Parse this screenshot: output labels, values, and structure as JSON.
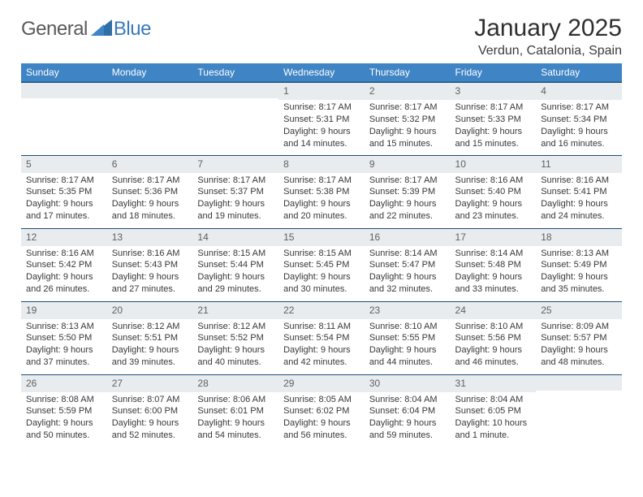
{
  "logo": {
    "general": "General",
    "blue": "Blue"
  },
  "title": "January 2025",
  "location": "Verdun, Catalonia, Spain",
  "colors": {
    "header_bg": "#3f84c4",
    "header_text": "#ffffff",
    "dayhead_bg": "#e8ecef",
    "dayhead_text": "#606060",
    "dayhead_border": "#1f4f7a",
    "body_text": "#383838",
    "logo_general": "#5a5a5a",
    "logo_blue": "#3a7ab8"
  },
  "day_headers": [
    "Sunday",
    "Monday",
    "Tuesday",
    "Wednesday",
    "Thursday",
    "Friday",
    "Saturday"
  ],
  "weeks": [
    [
      null,
      null,
      null,
      {
        "n": "1",
        "sunrise": "8:17 AM",
        "sunset": "5:31 PM",
        "d1": "Daylight: 9 hours",
        "d2": "and 14 minutes."
      },
      {
        "n": "2",
        "sunrise": "8:17 AM",
        "sunset": "5:32 PM",
        "d1": "Daylight: 9 hours",
        "d2": "and 15 minutes."
      },
      {
        "n": "3",
        "sunrise": "8:17 AM",
        "sunset": "5:33 PM",
        "d1": "Daylight: 9 hours",
        "d2": "and 15 minutes."
      },
      {
        "n": "4",
        "sunrise": "8:17 AM",
        "sunset": "5:34 PM",
        "d1": "Daylight: 9 hours",
        "d2": "and 16 minutes."
      }
    ],
    [
      {
        "n": "5",
        "sunrise": "8:17 AM",
        "sunset": "5:35 PM",
        "d1": "Daylight: 9 hours",
        "d2": "and 17 minutes."
      },
      {
        "n": "6",
        "sunrise": "8:17 AM",
        "sunset": "5:36 PM",
        "d1": "Daylight: 9 hours",
        "d2": "and 18 minutes."
      },
      {
        "n": "7",
        "sunrise": "8:17 AM",
        "sunset": "5:37 PM",
        "d1": "Daylight: 9 hours",
        "d2": "and 19 minutes."
      },
      {
        "n": "8",
        "sunrise": "8:17 AM",
        "sunset": "5:38 PM",
        "d1": "Daylight: 9 hours",
        "d2": "and 20 minutes."
      },
      {
        "n": "9",
        "sunrise": "8:17 AM",
        "sunset": "5:39 PM",
        "d1": "Daylight: 9 hours",
        "d2": "and 22 minutes."
      },
      {
        "n": "10",
        "sunrise": "8:16 AM",
        "sunset": "5:40 PM",
        "d1": "Daylight: 9 hours",
        "d2": "and 23 minutes."
      },
      {
        "n": "11",
        "sunrise": "8:16 AM",
        "sunset": "5:41 PM",
        "d1": "Daylight: 9 hours",
        "d2": "and 24 minutes."
      }
    ],
    [
      {
        "n": "12",
        "sunrise": "8:16 AM",
        "sunset": "5:42 PM",
        "d1": "Daylight: 9 hours",
        "d2": "and 26 minutes."
      },
      {
        "n": "13",
        "sunrise": "8:16 AM",
        "sunset": "5:43 PM",
        "d1": "Daylight: 9 hours",
        "d2": "and 27 minutes."
      },
      {
        "n": "14",
        "sunrise": "8:15 AM",
        "sunset": "5:44 PM",
        "d1": "Daylight: 9 hours",
        "d2": "and 29 minutes."
      },
      {
        "n": "15",
        "sunrise": "8:15 AM",
        "sunset": "5:45 PM",
        "d1": "Daylight: 9 hours",
        "d2": "and 30 minutes."
      },
      {
        "n": "16",
        "sunrise": "8:14 AM",
        "sunset": "5:47 PM",
        "d1": "Daylight: 9 hours",
        "d2": "and 32 minutes."
      },
      {
        "n": "17",
        "sunrise": "8:14 AM",
        "sunset": "5:48 PM",
        "d1": "Daylight: 9 hours",
        "d2": "and 33 minutes."
      },
      {
        "n": "18",
        "sunrise": "8:13 AM",
        "sunset": "5:49 PM",
        "d1": "Daylight: 9 hours",
        "d2": "and 35 minutes."
      }
    ],
    [
      {
        "n": "19",
        "sunrise": "8:13 AM",
        "sunset": "5:50 PM",
        "d1": "Daylight: 9 hours",
        "d2": "and 37 minutes."
      },
      {
        "n": "20",
        "sunrise": "8:12 AM",
        "sunset": "5:51 PM",
        "d1": "Daylight: 9 hours",
        "d2": "and 39 minutes."
      },
      {
        "n": "21",
        "sunrise": "8:12 AM",
        "sunset": "5:52 PM",
        "d1": "Daylight: 9 hours",
        "d2": "and 40 minutes."
      },
      {
        "n": "22",
        "sunrise": "8:11 AM",
        "sunset": "5:54 PM",
        "d1": "Daylight: 9 hours",
        "d2": "and 42 minutes."
      },
      {
        "n": "23",
        "sunrise": "8:10 AM",
        "sunset": "5:55 PM",
        "d1": "Daylight: 9 hours",
        "d2": "and 44 minutes."
      },
      {
        "n": "24",
        "sunrise": "8:10 AM",
        "sunset": "5:56 PM",
        "d1": "Daylight: 9 hours",
        "d2": "and 46 minutes."
      },
      {
        "n": "25",
        "sunrise": "8:09 AM",
        "sunset": "5:57 PM",
        "d1": "Daylight: 9 hours",
        "d2": "and 48 minutes."
      }
    ],
    [
      {
        "n": "26",
        "sunrise": "8:08 AM",
        "sunset": "5:59 PM",
        "d1": "Daylight: 9 hours",
        "d2": "and 50 minutes."
      },
      {
        "n": "27",
        "sunrise": "8:07 AM",
        "sunset": "6:00 PM",
        "d1": "Daylight: 9 hours",
        "d2": "and 52 minutes."
      },
      {
        "n": "28",
        "sunrise": "8:06 AM",
        "sunset": "6:01 PM",
        "d1": "Daylight: 9 hours",
        "d2": "and 54 minutes."
      },
      {
        "n": "29",
        "sunrise": "8:05 AM",
        "sunset": "6:02 PM",
        "d1": "Daylight: 9 hours",
        "d2": "and 56 minutes."
      },
      {
        "n": "30",
        "sunrise": "8:04 AM",
        "sunset": "6:04 PM",
        "d1": "Daylight: 9 hours",
        "d2": "and 59 minutes."
      },
      {
        "n": "31",
        "sunrise": "8:04 AM",
        "sunset": "6:05 PM",
        "d1": "Daylight: 10 hours",
        "d2": "and 1 minute."
      },
      null
    ]
  ],
  "labels": {
    "sunrise_prefix": "Sunrise: ",
    "sunset_prefix": "Sunset: "
  }
}
